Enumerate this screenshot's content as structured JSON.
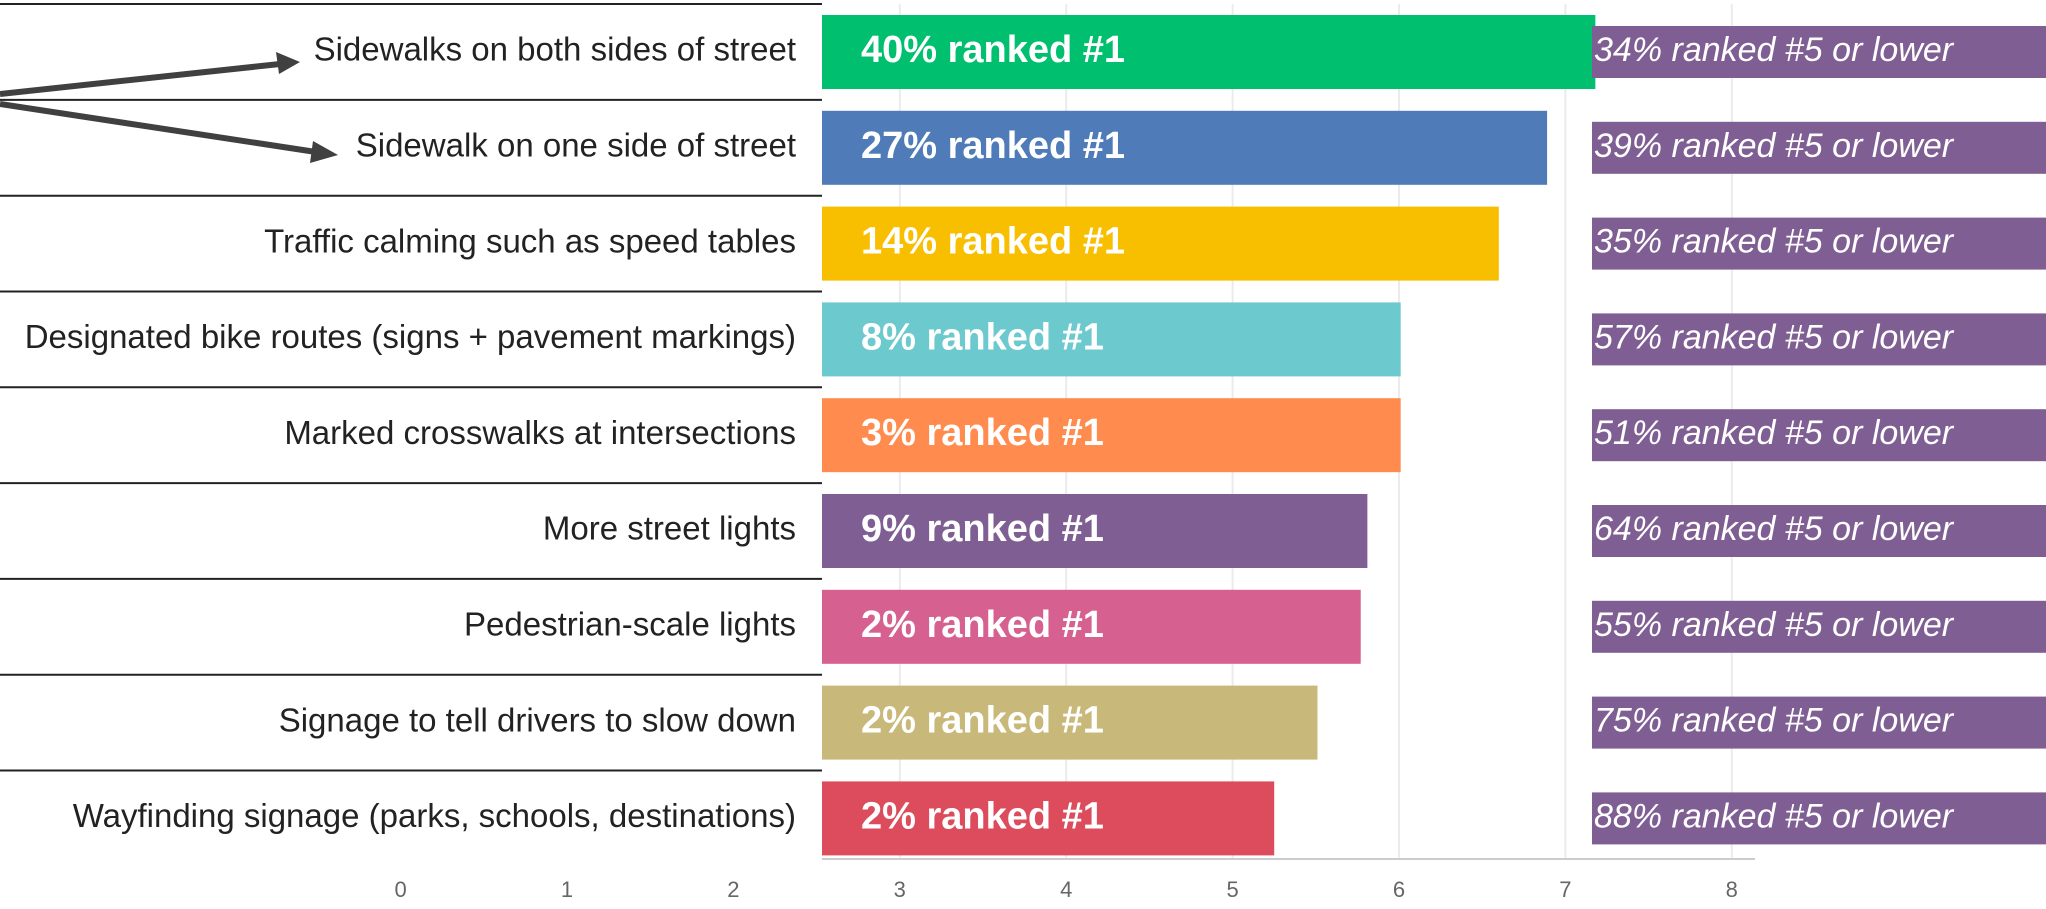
{
  "chart_data": {
    "type": "bar",
    "orientation": "horizontal",
    "categories": [
      "Sidewalks on both sides of street",
      "Sidewalk on one side of street",
      "Traffic calming such as speed tables",
      "Designated bike routes (signs + pavement markings)",
      "Marked crosswalks at intersections",
      "More street lights",
      "Pedestrian-scale lights",
      "Signage to tell drivers to slow down",
      "Wayfinding signage (parks, schools, destinations)"
    ],
    "values": [
      7.18,
      6.89,
      6.6,
      6.01,
      6.01,
      5.81,
      5.77,
      5.51,
      5.25
    ],
    "colors": [
      "#00c06f",
      "#4f7cb8",
      "#f8bf00",
      "#6cc9ce",
      "#ff8c4e",
      "#7f5f93",
      "#d6608f",
      "#c8b87a",
      "#dc4c5c"
    ],
    "rank1_labels": [
      "40% ranked #1",
      "27% ranked #1",
      "14% ranked #1",
      "8% ranked #1",
      "3% ranked #1",
      "9% ranked #1",
      "2% ranked #1",
      "2% ranked #1",
      "2% ranked #1"
    ],
    "low_rank_labels": [
      "34% ranked #5 or lower",
      "39% ranked #5 or lower",
      "35% ranked #5 or lower",
      "57% ranked #5 or lower",
      "51% ranked #5 or lower",
      "64% ranked #5 or lower",
      "55% ranked #5 or lower",
      "75% ranked #5 or lower",
      "88% ranked #5 or lower"
    ],
    "low_rank_color": "#7f5f93",
    "xlim": [
      0,
      8
    ],
    "xticks": [
      0,
      1,
      2,
      3,
      4,
      5,
      6,
      7,
      8
    ],
    "grid": true
  }
}
